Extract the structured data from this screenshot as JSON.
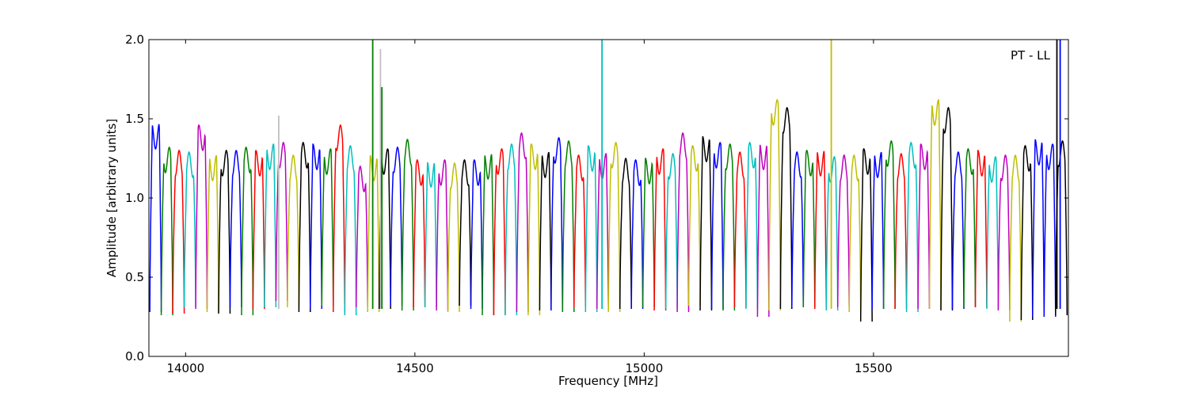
{
  "chart_data": {
    "type": "line",
    "xlabel": "Frequency [MHz]",
    "ylabel": "Amplitude [arbitrary units]",
    "xlim": [
      13920,
      15925
    ],
    "ylim": [
      0.0,
      2.0
    ],
    "xticks": [
      14000,
      14500,
      15000,
      15500
    ],
    "xtick_labels": [
      "14000",
      "14500",
      "15000",
      "15500"
    ],
    "yticks": [
      0.0,
      0.5,
      1.0,
      1.5,
      2.0
    ],
    "ytick_labels": [
      "0.0",
      "0.5",
      "1.0",
      "1.5",
      "2.0"
    ],
    "annotation": "PT - LL",
    "grid": false,
    "band_width_mhz": 25,
    "bands": [
      {
        "start": 13922,
        "color": "#0000ff",
        "peak": 1.43,
        "min": 0.28
      },
      {
        "start": 13947,
        "color": "#008000",
        "peak": 1.28,
        "min": 0.26
      },
      {
        "start": 13972,
        "color": "#ff0000",
        "peak": 1.26,
        "min": 0.27
      },
      {
        "start": 13997,
        "color": "#00bfbf",
        "peak": 1.25,
        "min": 0.31
      },
      {
        "start": 14022,
        "color": "#bf00bf",
        "peak": 1.42,
        "min": 0.3
      },
      {
        "start": 14047,
        "color": "#bfbf00",
        "peak": 1.23,
        "min": 0.28
      },
      {
        "start": 14072,
        "color": "#000000",
        "peak": 1.26,
        "min": 0.27
      },
      {
        "start": 14097,
        "color": "#0000ff",
        "peak": 1.26,
        "min": 0.31
      },
      {
        "start": 14122,
        "color": "#008000",
        "peak": 1.28,
        "min": 0.26
      },
      {
        "start": 14147,
        "color": "#ff0000",
        "peak": 1.26,
        "min": 0.3
      },
      {
        "start": 14172,
        "color": "#00bfbf",
        "peak": 1.3,
        "min": 0.31
      },
      {
        "start": 14197,
        "color": "#bf00bf",
        "peak": 1.31,
        "min": 0.35
      },
      {
        "start": 14222,
        "color": "#bfbf00",
        "peak": 1.23,
        "min": 0.31
      },
      {
        "start": 14247,
        "color": "#000000",
        "peak": 1.31,
        "min": 0.28
      },
      {
        "start": 14272,
        "color": "#0000ff",
        "peak": 1.3,
        "min": 0.3
      },
      {
        "start": 14297,
        "color": "#008000",
        "peak": 1.27,
        "min": 0.32
      },
      {
        "start": 14322,
        "color": "#ff0000",
        "peak": 1.42,
        "min": 0.28
      },
      {
        "start": 14347,
        "color": "#00bfbf",
        "peak": 1.29,
        "min": 0.26
      },
      {
        "start": 14372,
        "color": "#bf00bf",
        "peak": 1.16,
        "min": 0.31
      },
      {
        "start": 14397,
        "color": "#bfbf00",
        "peak": 1.23,
        "min": 0.28
      },
      {
        "start": 14422,
        "color": "#000000",
        "peak": 1.27,
        "min": 0.3
      },
      {
        "start": 14447,
        "color": "#0000ff",
        "peak": 1.28,
        "min": 0.32
      },
      {
        "start": 14472,
        "color": "#008000",
        "peak": 1.33,
        "min": 0.29
      },
      {
        "start": 14497,
        "color": "#ff0000",
        "peak": 1.2,
        "min": 0.31
      },
      {
        "start": 14522,
        "color": "#00bfbf",
        "peak": 1.19,
        "min": 0.31
      },
      {
        "start": 14547,
        "color": "#bf00bf",
        "peak": 1.2,
        "min": 0.29
      },
      {
        "start": 14572,
        "color": "#bfbf00",
        "peak": 1.18,
        "min": 0.28
      },
      {
        "start": 14597,
        "color": "#000000",
        "peak": 1.2,
        "min": 0.32
      },
      {
        "start": 14622,
        "color": "#0000ff",
        "peak": 1.2,
        "min": 0.3
      },
      {
        "start": 14647,
        "color": "#008000",
        "peak": 1.24,
        "min": 0.26
      },
      {
        "start": 14672,
        "color": "#ff0000",
        "peak": 1.27,
        "min": 0.26
      },
      {
        "start": 14697,
        "color": "#00bfbf",
        "peak": 1.3,
        "min": 0.26
      },
      {
        "start": 14722,
        "color": "#bf00bf",
        "peak": 1.37,
        "min": 0.28
      },
      {
        "start": 14747,
        "color": "#bfbf00",
        "peak": 1.3,
        "min": 0.26
      },
      {
        "start": 14772,
        "color": "#000000",
        "peak": 1.25,
        "min": 0.29
      },
      {
        "start": 14797,
        "color": "#0000ff",
        "peak": 1.34,
        "min": 0.29
      },
      {
        "start": 14822,
        "color": "#008000",
        "peak": 1.32,
        "min": 0.28
      },
      {
        "start": 14847,
        "color": "#ff0000",
        "peak": 1.23,
        "min": 0.31
      },
      {
        "start": 14872,
        "color": "#00bfbf",
        "peak": 1.29,
        "min": 0.28
      },
      {
        "start": 14897,
        "color": "#bf00bf",
        "peak": 1.24,
        "min": 0.3
      },
      {
        "start": 14922,
        "color": "#bfbf00",
        "peak": 1.31,
        "min": 0.28
      },
      {
        "start": 14947,
        "color": "#000000",
        "peak": 1.21,
        "min": 0.3
      },
      {
        "start": 14972,
        "color": "#0000ff",
        "peak": 1.2,
        "min": 0.3
      },
      {
        "start": 14997,
        "color": "#008000",
        "peak": 1.21,
        "min": 0.31
      },
      {
        "start": 15022,
        "color": "#ff0000",
        "peak": 1.27,
        "min": 0.29
      },
      {
        "start": 15047,
        "color": "#00bfbf",
        "peak": 1.24,
        "min": 0.3
      },
      {
        "start": 15072,
        "color": "#bf00bf",
        "peak": 1.37,
        "min": 0.28
      },
      {
        "start": 15097,
        "color": "#bfbf00",
        "peak": 1.29,
        "min": 0.32
      },
      {
        "start": 15122,
        "color": "#000000",
        "peak": 1.35,
        "min": 0.29
      },
      {
        "start": 15147,
        "color": "#0000ff",
        "peak": 1.31,
        "min": 0.3
      },
      {
        "start": 15172,
        "color": "#008000",
        "peak": 1.3,
        "min": 0.29
      },
      {
        "start": 15197,
        "color": "#ff0000",
        "peak": 1.25,
        "min": 0.31
      },
      {
        "start": 15222,
        "color": "#00bfbf",
        "peak": 1.31,
        "min": 0.3
      },
      {
        "start": 15247,
        "color": "#bf00bf",
        "peak": 1.3,
        "min": 0.25
      },
      {
        "start": 15272,
        "color": "#bfbf00",
        "peak": 1.58,
        "min": 0.29
      },
      {
        "start": 15297,
        "color": "#000000",
        "peak": 1.53,
        "min": 0.3
      },
      {
        "start": 15322,
        "color": "#0000ff",
        "peak": 1.25,
        "min": 0.31
      },
      {
        "start": 15347,
        "color": "#008000",
        "peak": 1.26,
        "min": 0.31
      },
      {
        "start": 15372,
        "color": "#ff0000",
        "peak": 1.26,
        "min": 0.3
      },
      {
        "start": 15397,
        "color": "#00bfbf",
        "peak": 1.22,
        "min": 0.29
      },
      {
        "start": 15422,
        "color": "#bf00bf",
        "peak": 1.23,
        "min": 0.31
      },
      {
        "start": 15447,
        "color": "#bfbf00",
        "peak": 1.23,
        "min": 0.28
      },
      {
        "start": 15472,
        "color": "#000000",
        "peak": 1.27,
        "min": 0.22
      },
      {
        "start": 15497,
        "color": "#0000ff",
        "peak": 1.25,
        "min": 0.3
      },
      {
        "start": 15522,
        "color": "#008000",
        "peak": 1.32,
        "min": 0.3
      },
      {
        "start": 15547,
        "color": "#ff0000",
        "peak": 1.24,
        "min": 0.3
      },
      {
        "start": 15572,
        "color": "#00bfbf",
        "peak": 1.31,
        "min": 0.28
      },
      {
        "start": 15597,
        "color": "#bf00bf",
        "peak": 1.3,
        "min": 0.3
      },
      {
        "start": 15622,
        "color": "#bfbf00",
        "peak": 1.58,
        "min": 0.3
      },
      {
        "start": 15647,
        "color": "#000000",
        "peak": 1.53,
        "min": 0.29
      },
      {
        "start": 15672,
        "color": "#0000ff",
        "peak": 1.25,
        "min": 0.3
      },
      {
        "start": 15697,
        "color": "#008000",
        "peak": 1.27,
        "min": 0.31
      },
      {
        "start": 15722,
        "color": "#ff0000",
        "peak": 1.26,
        "min": 0.31
      },
      {
        "start": 15747,
        "color": "#00bfbf",
        "peak": 1.22,
        "min": 0.3
      },
      {
        "start": 15772,
        "color": "#bf00bf",
        "peak": 1.23,
        "min": 0.29
      },
      {
        "start": 15797,
        "color": "#bfbf00",
        "peak": 1.23,
        "min": 0.22
      },
      {
        "start": 15822,
        "color": "#000000",
        "peak": 1.29,
        "min": 0.23
      },
      {
        "start": 15847,
        "color": "#0000ff",
        "peak": 1.33,
        "min": 0.25
      },
      {
        "start": 15872,
        "color": "#0000ff",
        "peak": 1.3,
        "min": 0.25
      },
      {
        "start": 15897,
        "color": "#000000",
        "peak": 1.32,
        "min": 0.26
      }
    ],
    "spikes": [
      {
        "x": 14203,
        "color": "#c0c0c0",
        "top": 1.52
      },
      {
        "x": 14408,
        "color": "#008000",
        "top": 2.0
      },
      {
        "x": 14425,
        "color": "#c0c0c0",
        "top": 1.94
      },
      {
        "x": 14428,
        "color": "#008000",
        "top": 1.7
      },
      {
        "x": 14908,
        "color": "#00bfbf",
        "top": 2.0
      },
      {
        "x": 15408,
        "color": "#bfbf00",
        "top": 2.0
      },
      {
        "x": 15900,
        "color": "#000000",
        "top": 2.0
      },
      {
        "x": 15907,
        "color": "#0000ff",
        "top": 2.0
      }
    ]
  }
}
